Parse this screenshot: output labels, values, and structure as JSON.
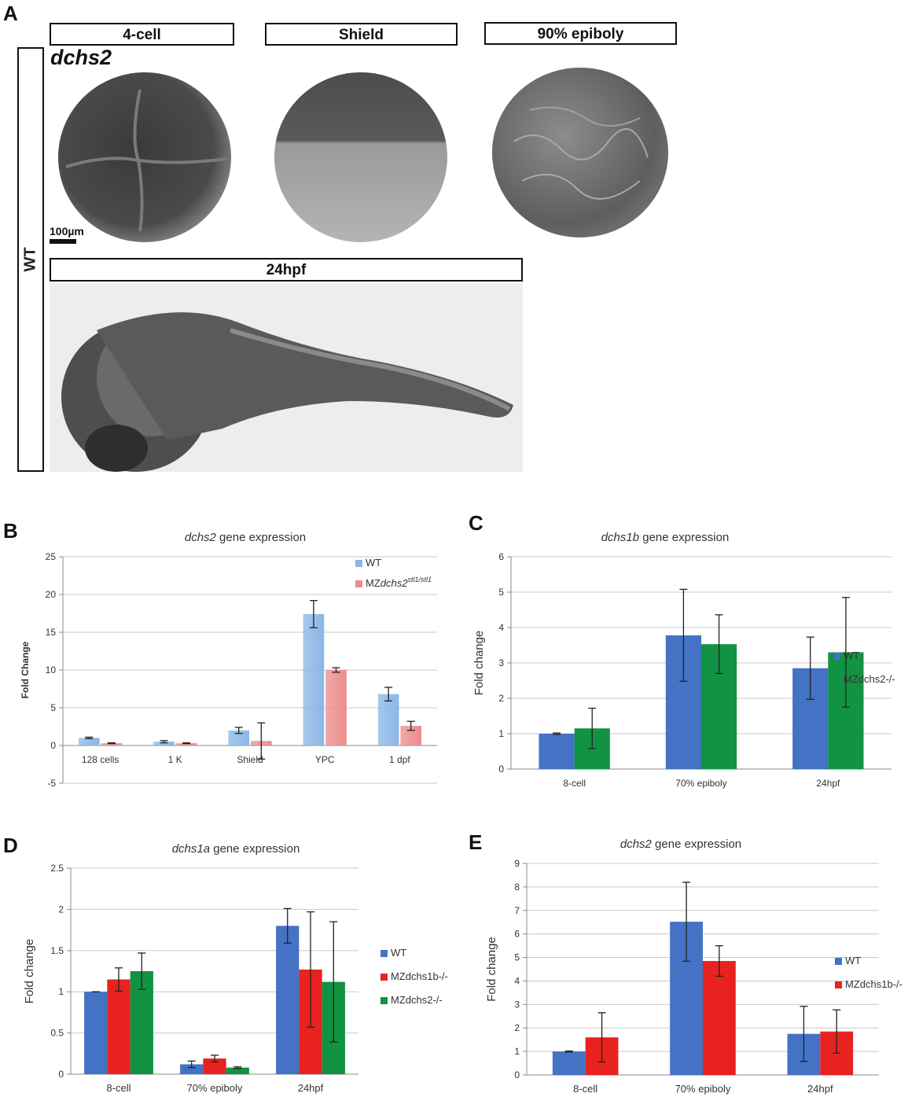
{
  "panel_letters": {
    "a": "A",
    "b": "B",
    "c": "C",
    "d": "D",
    "e": "E"
  },
  "panel_a": {
    "stages": [
      "4-cell",
      "Shield",
      "90% epiboly"
    ],
    "stage_24": "24hpf",
    "gene_label": "dchs2",
    "scale_label": "100µm",
    "side_label": "WT"
  },
  "colors": {
    "wt_light": "#8ab6e6",
    "mut_light": "#ec8c8c",
    "blue": "#4472c4",
    "red": "#e8231f",
    "green": "#129243"
  },
  "chart_data": [
    {
      "id": "B",
      "type": "bar",
      "title_gene": "dchs2",
      "title_rest": " gene expression",
      "ylabel": "Fold Change",
      "ylim": [
        -5,
        25
      ],
      "yticks": [
        -5,
        0,
        5,
        10,
        15,
        20,
        25
      ],
      "categories": [
        "128 cells",
        "1 K",
        "Shield",
        "YPC",
        "1 dpf"
      ],
      "series": [
        {
          "name": "WT",
          "color": "#8ab6e6",
          "values": [
            1.0,
            0.5,
            2.0,
            17.4,
            6.8
          ],
          "err": [
            0.1,
            0.15,
            0.4,
            1.8,
            0.9
          ]
        },
        {
          "name": "MZdchs2",
          "superscript": "stl1/stl1",
          "color": "#ec8c8c",
          "values": [
            0.3,
            0.3,
            0.6,
            10.0,
            2.6
          ],
          "err": [
            0.05,
            0.05,
            2.4,
            0.3,
            0.6
          ]
        }
      ],
      "legend_position": "top-right"
    },
    {
      "id": "C",
      "type": "bar",
      "title_gene": "dchs1b",
      "title_rest": " gene expression",
      "ylabel": "Fold change",
      "ylim": [
        0,
        6
      ],
      "yticks": [
        0,
        1,
        2,
        3,
        4,
        5,
        6
      ],
      "categories": [
        "8-cell",
        "70% epiboly",
        "24hpf"
      ],
      "series": [
        {
          "name": "WT",
          "color": "#4472c4",
          "values": [
            1.0,
            3.78,
            2.85
          ],
          "err": [
            0.02,
            1.3,
            0.88
          ]
        },
        {
          "name": "MZdchs2-/-",
          "color": "#129243",
          "values": [
            1.15,
            3.53,
            3.3
          ],
          "err": [
            0.57,
            0.83,
            1.55
          ]
        }
      ],
      "legend_position": "right"
    },
    {
      "id": "D",
      "type": "bar",
      "title_gene": "dchs1a",
      "title_rest": " gene expression",
      "ylabel": "Fold change",
      "ylim": [
        0,
        2.5
      ],
      "yticks": [
        "0",
        "0.5",
        "1",
        "1.5",
        "2",
        "2.5"
      ],
      "categories": [
        "8-cell",
        "70% epiboly",
        "24hpf"
      ],
      "series": [
        {
          "name": "WT",
          "color": "#4472c4",
          "values": [
            1.0,
            0.12,
            1.8
          ],
          "err": [
            0.0,
            0.04,
            0.21
          ]
        },
        {
          "name": "MZdchs1b-/-",
          "color": "#e8231f",
          "values": [
            1.15,
            0.19,
            1.27
          ],
          "err": [
            0.14,
            0.04,
            0.7
          ]
        },
        {
          "name": "MZdchs2-/-",
          "color": "#129243",
          "values": [
            1.25,
            0.08,
            1.12
          ],
          "err": [
            0.22,
            0.01,
            0.73
          ]
        }
      ],
      "legend_position": "right"
    },
    {
      "id": "E",
      "type": "bar",
      "title_gene": "dchs2",
      "title_rest": " gene expression",
      "ylabel": "Fold change",
      "ylim": [
        0,
        9
      ],
      "yticks": [
        0,
        1,
        2,
        3,
        4,
        5,
        6,
        7,
        8,
        9
      ],
      "categories": [
        "8-cell",
        "70% epiboly",
        "24hpf"
      ],
      "series": [
        {
          "name": "WT",
          "color": "#4472c4",
          "values": [
            1.0,
            6.52,
            1.75
          ],
          "err": [
            0.02,
            1.68,
            1.17
          ]
        },
        {
          "name": "MZdchs1b-/-",
          "color": "#e8231f",
          "values": [
            1.6,
            4.85,
            1.85
          ],
          "err": [
            1.05,
            0.65,
            0.92
          ]
        }
      ],
      "legend_position": "right"
    }
  ]
}
